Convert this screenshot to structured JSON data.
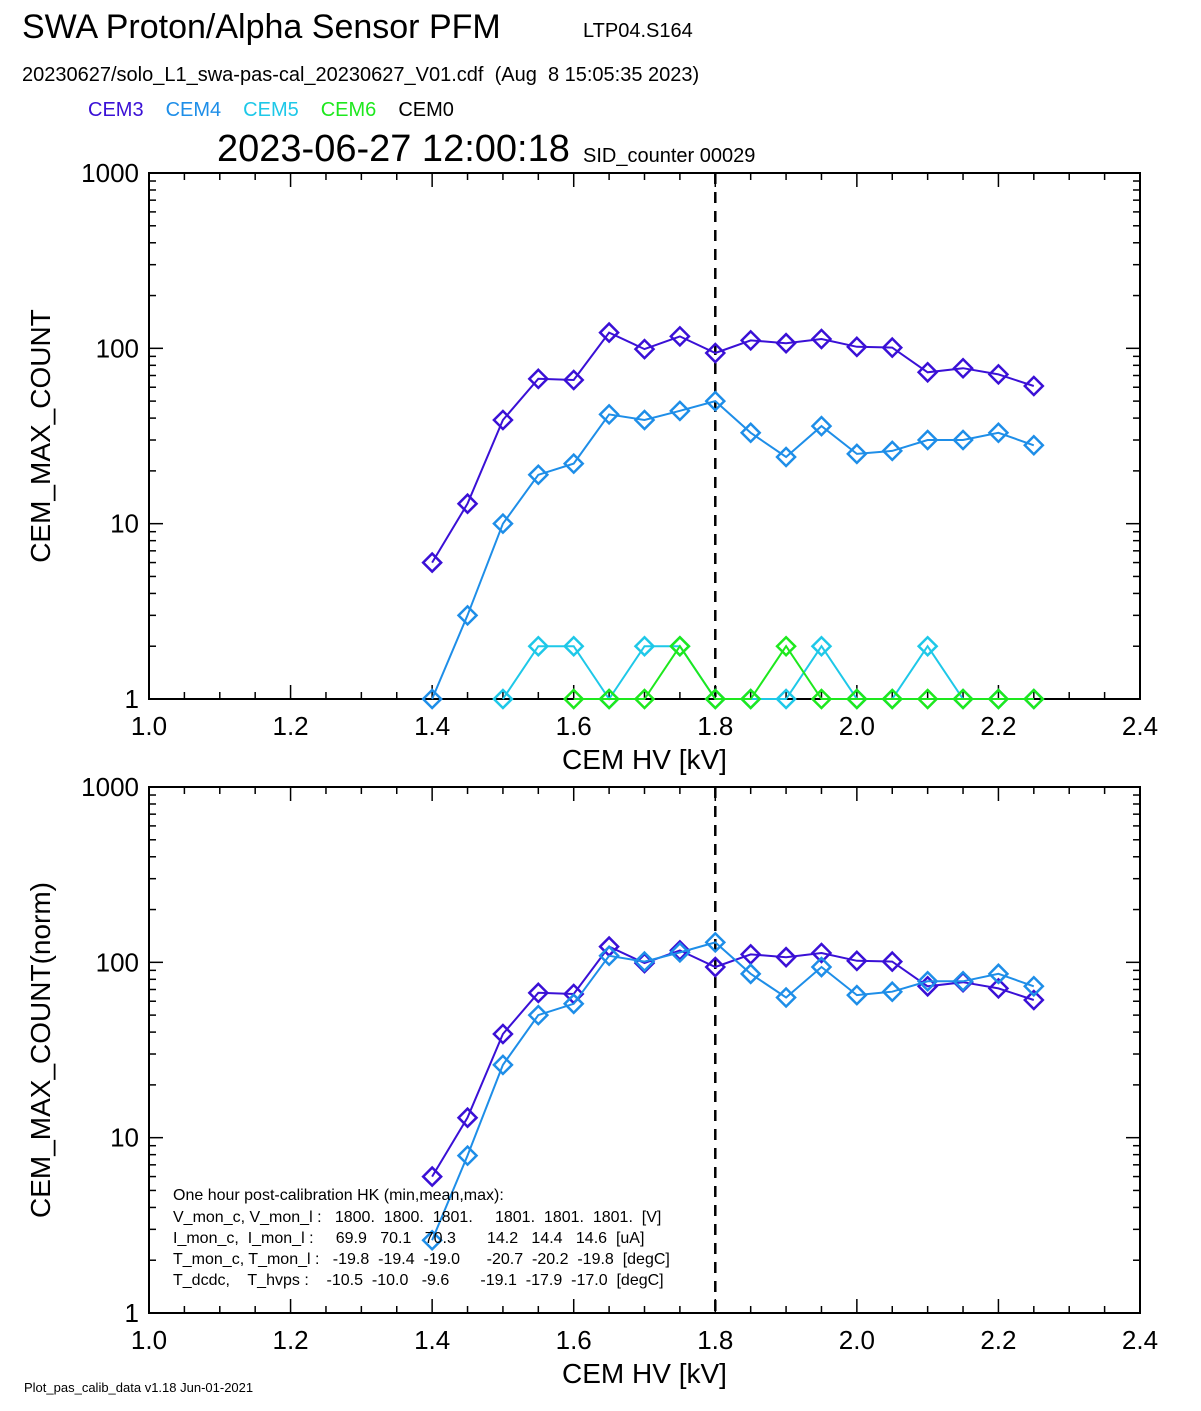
{
  "header": {
    "title": "SWA Proton/Alpha Sensor PFM",
    "run_id": "LTP04.S164",
    "file_line": "20230627/solo_L1_swa-pas-cal_20230627_V01.cdf  (Aug  8 15:05:35 2023)",
    "timestamp": "2023-06-27 12:00:18",
    "sid_counter": "SID_counter 00029"
  },
  "legend": [
    {
      "label": "CEM3",
      "color": "#3a10d6"
    },
    {
      "label": "CEM4",
      "color": "#1e8ee8"
    },
    {
      "label": "CEM5",
      "color": "#1ec8e8"
    },
    {
      "label": "CEM6",
      "color": "#1ee81e"
    },
    {
      "label": "CEM0",
      "color": "#000000"
    }
  ],
  "footer": "Plot_pas_calib_data v1.18 Jun-01-2021",
  "hk_text": {
    "title": "One hour post-calibration HK (min,mean,max):",
    "rows": [
      "V_mon_c, V_mon_l :   1800.  1800.  1801.     1801.  1801.  1801.  [V]",
      "I_mon_c,  I_mon_l :     69.9   70.1   70.3       14.2   14.4   14.6  [uA]",
      "T_mon_c, T_mon_l :   -19.8  -19.4  -19.0      -20.7  -20.2  -19.8  [degC]",
      "T_dcdc,    T_hvps :    -10.5  -10.0   -9.6       -19.1  -17.9  -17.0  [degC]"
    ]
  },
  "chart_data": [
    {
      "type": "line",
      "xlabel": "CEM HV [kV]",
      "ylabel": "CEM_MAX_COUNT",
      "xlim": [
        1.0,
        2.4
      ],
      "ylim": [
        1,
        1000
      ],
      "yscale": "log",
      "x_ticks": [
        "1.0",
        "1.2",
        "1.4",
        "1.6",
        "1.8",
        "2.0",
        "2.2",
        "2.4"
      ],
      "y_ticks": [
        "1",
        "10",
        "100",
        "1000"
      ],
      "vline_x": 1.8,
      "marker": "diamond",
      "series": [
        {
          "name": "CEM3",
          "color": "#3a10d6",
          "x": [
            1.4,
            1.45,
            1.5,
            1.55,
            1.6,
            1.65,
            1.7,
            1.75,
            1.8,
            1.85,
            1.9,
            1.95,
            2.0,
            2.05,
            2.1,
            2.15,
            2.2,
            2.25
          ],
          "y": [
            6,
            13,
            39,
            67,
            66,
            123,
            99,
            117,
            94,
            111,
            107,
            113,
            102,
            101,
            73,
            77,
            71,
            61
          ]
        },
        {
          "name": "CEM4",
          "color": "#1e8ee8",
          "x": [
            1.4,
            1.45,
            1.5,
            1.55,
            1.6,
            1.65,
            1.7,
            1.75,
            1.8,
            1.85,
            1.9,
            1.95,
            2.0,
            2.05,
            2.1,
            2.15,
            2.2,
            2.25
          ],
          "y": [
            1,
            3,
            10,
            19,
            22,
            42,
            39,
            44,
            50,
            33,
            24,
            36,
            25,
            26,
            30,
            30,
            33,
            28
          ]
        },
        {
          "name": "CEM5",
          "color": "#1ec8e8",
          "x": [
            1.5,
            1.55,
            1.6,
            1.65,
            1.7,
            1.75,
            1.8,
            1.85,
            1.9,
            1.95,
            2.0,
            2.05,
            2.1,
            2.15,
            2.2,
            2.25
          ],
          "y": [
            1,
            2,
            2,
            1,
            2,
            2,
            1,
            1,
            1,
            2,
            1,
            1,
            2,
            1,
            1,
            1
          ]
        },
        {
          "name": "CEM6",
          "color": "#1ee81e",
          "x": [
            1.6,
            1.65,
            1.7,
            1.75,
            1.8,
            1.85,
            1.9,
            1.95,
            2.0,
            2.05,
            2.1,
            2.15,
            2.2,
            2.25
          ],
          "y": [
            1,
            1,
            1,
            2,
            1,
            1,
            2,
            1,
            1,
            1,
            1,
            1,
            1,
            1
          ]
        }
      ]
    },
    {
      "type": "line",
      "xlabel": "CEM HV [kV]",
      "ylabel": "CEM_MAX_COUNT(norm)",
      "xlim": [
        1.0,
        2.4
      ],
      "ylim": [
        1,
        1000
      ],
      "yscale": "log",
      "x_ticks": [
        "1.0",
        "1.2",
        "1.4",
        "1.6",
        "1.8",
        "2.0",
        "2.2",
        "2.4"
      ],
      "y_ticks": [
        "1",
        "10",
        "100",
        "1000"
      ],
      "vline_x": 1.8,
      "marker": "diamond",
      "series": [
        {
          "name": "CEM3",
          "color": "#3a10d6",
          "x": [
            1.4,
            1.45,
            1.5,
            1.55,
            1.6,
            1.65,
            1.7,
            1.75,
            1.8,
            1.85,
            1.9,
            1.95,
            2.0,
            2.05,
            2.1,
            2.15,
            2.2,
            2.25
          ],
          "y": [
            6,
            13,
            39,
            67,
            66,
            123,
            99,
            117,
            94,
            111,
            107,
            113,
            102,
            101,
            73,
            77,
            71,
            61
          ]
        },
        {
          "name": "CEM4",
          "color": "#1e8ee8",
          "x": [
            1.4,
            1.45,
            1.5,
            1.55,
            1.6,
            1.65,
            1.7,
            1.75,
            1.8,
            1.85,
            1.9,
            1.95,
            2.0,
            2.05,
            2.1,
            2.15,
            2.2,
            2.25
          ],
          "y": [
            2.6,
            7.9,
            26,
            50,
            58,
            109,
            101,
            114,
            130,
            86,
            63,
            94,
            65,
            68,
            78,
            78,
            86,
            73
          ]
        }
      ]
    }
  ]
}
